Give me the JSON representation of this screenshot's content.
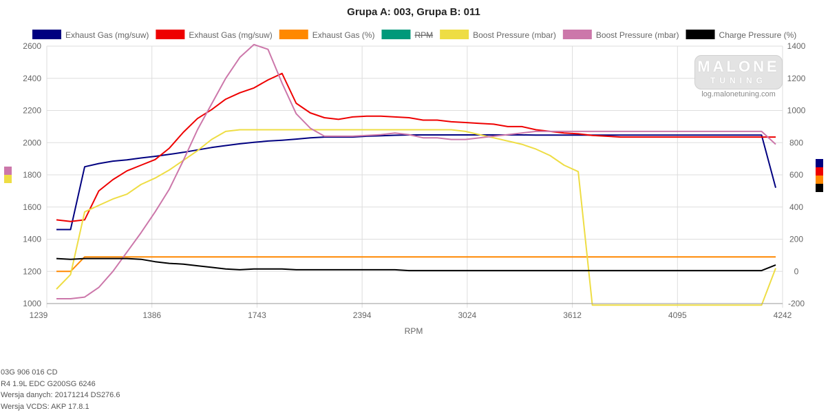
{
  "colors": {
    "grid": "#dddddd",
    "axis": "#999999"
  },
  "chart_data": {
    "type": "line",
    "title": "Grupa A: 003, Grupa B: 011",
    "xlabel": "RPM",
    "x_ticks": [
      "1239",
      "1386",
      "1743",
      "2394",
      "3024",
      "3612",
      "4095",
      "4242"
    ],
    "y_left": {
      "ticks": [
        1000,
        1200,
        1400,
        1600,
        1800,
        2000,
        2200,
        2400,
        2600
      ],
      "range": [
        1000,
        2600
      ]
    },
    "y_right": {
      "ticks": [
        -200,
        0,
        200,
        400,
        600,
        800,
        1000,
        1200,
        1400
      ],
      "range": [
        -200,
        1400
      ]
    },
    "legend_position": "top",
    "series": [
      {
        "name": "Exhaust Gas (mg/suw)",
        "color": "#000080",
        "axis": "left",
        "hidden": false,
        "values": [
          1460,
          1460,
          1850,
          1870,
          1885,
          1893,
          1905,
          1915,
          1927,
          1940,
          1955,
          1970,
          1982,
          1993,
          2002,
          2010,
          2015,
          2022,
          2030,
          2035,
          2035,
          2035,
          2040,
          2043,
          2046,
          2048,
          2048,
          2048,
          2048,
          2048,
          2048,
          2048,
          2048,
          2048,
          2047,
          2047,
          2047,
          2047,
          2047,
          2047,
          2047,
          2047,
          2047,
          2047,
          2047,
          2047,
          2047,
          2047,
          2047,
          2047,
          2047,
          1720
        ]
      },
      {
        "name": "Exhaust Gas (mg/suw)",
        "color": "#ee0000",
        "axis": "left",
        "hidden": false,
        "values": [
          1520,
          1510,
          1520,
          1700,
          1770,
          1825,
          1860,
          1895,
          1965,
          2065,
          2150,
          2205,
          2270,
          2310,
          2340,
          2390,
          2430,
          2245,
          2185,
          2155,
          2145,
          2160,
          2165,
          2165,
          2160,
          2155,
          2140,
          2140,
          2130,
          2125,
          2120,
          2115,
          2100,
          2100,
          2080,
          2070,
          2060,
          2055,
          2045,
          2040,
          2035,
          2035,
          2035,
          2035,
          2035,
          2035,
          2035,
          2035,
          2035,
          2035,
          2035,
          2035
        ]
      },
      {
        "name": "Exhaust Gas (%)",
        "color": "#ff8800",
        "axis": "right",
        "hidden": false,
        "values": [
          0,
          0,
          90,
          90,
          90,
          90,
          90,
          90,
          90,
          90,
          90,
          90,
          90,
          90,
          90,
          90,
          90,
          90,
          90,
          90,
          90,
          90,
          90,
          90,
          90,
          90,
          90,
          90,
          90,
          90,
          90,
          90,
          90,
          90,
          90,
          90,
          90,
          90,
          90,
          90,
          90,
          90,
          90,
          90,
          90,
          90,
          90,
          90,
          90,
          90,
          90,
          90
        ]
      },
      {
        "name": "RPM",
        "color": "#00997a",
        "axis": "left",
        "hidden": true,
        "values": []
      },
      {
        "name": "Boost Pressure (mbar)",
        "color": "#eedd44",
        "axis": "right",
        "hidden": false,
        "values": [
          -110,
          -20,
          370,
          410,
          450,
          480,
          540,
          580,
          630,
          690,
          750,
          820,
          870,
          880,
          880,
          880,
          880,
          880,
          880,
          880,
          880,
          880,
          880,
          880,
          880,
          880,
          880,
          880,
          880,
          870,
          850,
          830,
          810,
          790,
          760,
          720,
          660,
          620,
          -210,
          -210,
          -210,
          -210,
          -210,
          -210,
          -210,
          -210,
          -210,
          -210,
          -210,
          -210,
          -210,
          20
        ]
      },
      {
        "name": "Boost Pressure (mbar)",
        "color": "#cc77aa",
        "axis": "right",
        "hidden": false,
        "values": [
          -170,
          -170,
          -160,
          -100,
          0,
          120,
          240,
          370,
          510,
          690,
          880,
          1040,
          1200,
          1330,
          1410,
          1380,
          1170,
          980,
          890,
          840,
          840,
          840,
          845,
          850,
          860,
          850,
          830,
          830,
          820,
          820,
          830,
          840,
          850,
          860,
          870,
          870,
          870,
          870,
          870,
          870,
          870,
          870,
          870,
          870,
          870,
          870,
          870,
          870,
          870,
          870,
          870,
          790
        ]
      },
      {
        "name": "Charge Pressure (%)",
        "color": "#000000",
        "axis": "right",
        "hidden": false,
        "values": [
          80,
          75,
          80,
          80,
          80,
          80,
          75,
          60,
          50,
          45,
          35,
          25,
          15,
          10,
          15,
          15,
          15,
          10,
          10,
          10,
          10,
          10,
          10,
          10,
          10,
          5,
          5,
          5,
          5,
          5,
          5,
          5,
          5,
          5,
          5,
          5,
          5,
          5,
          5,
          5,
          5,
          5,
          5,
          5,
          5,
          5,
          5,
          5,
          5,
          5,
          5,
          40
        ]
      }
    ]
  },
  "logo": {
    "top": "MALONE",
    "bottom": "TUNING",
    "url": "log.malonetuning.com"
  },
  "info": {
    "line1": "03G 906 016 CD",
    "line2": "R4 1.9L EDC G200SG  6246",
    "line3": "Wersja danych: 20171214 DS276.6",
    "line4": "Wersja VCDS: AKP 17.8.1"
  }
}
